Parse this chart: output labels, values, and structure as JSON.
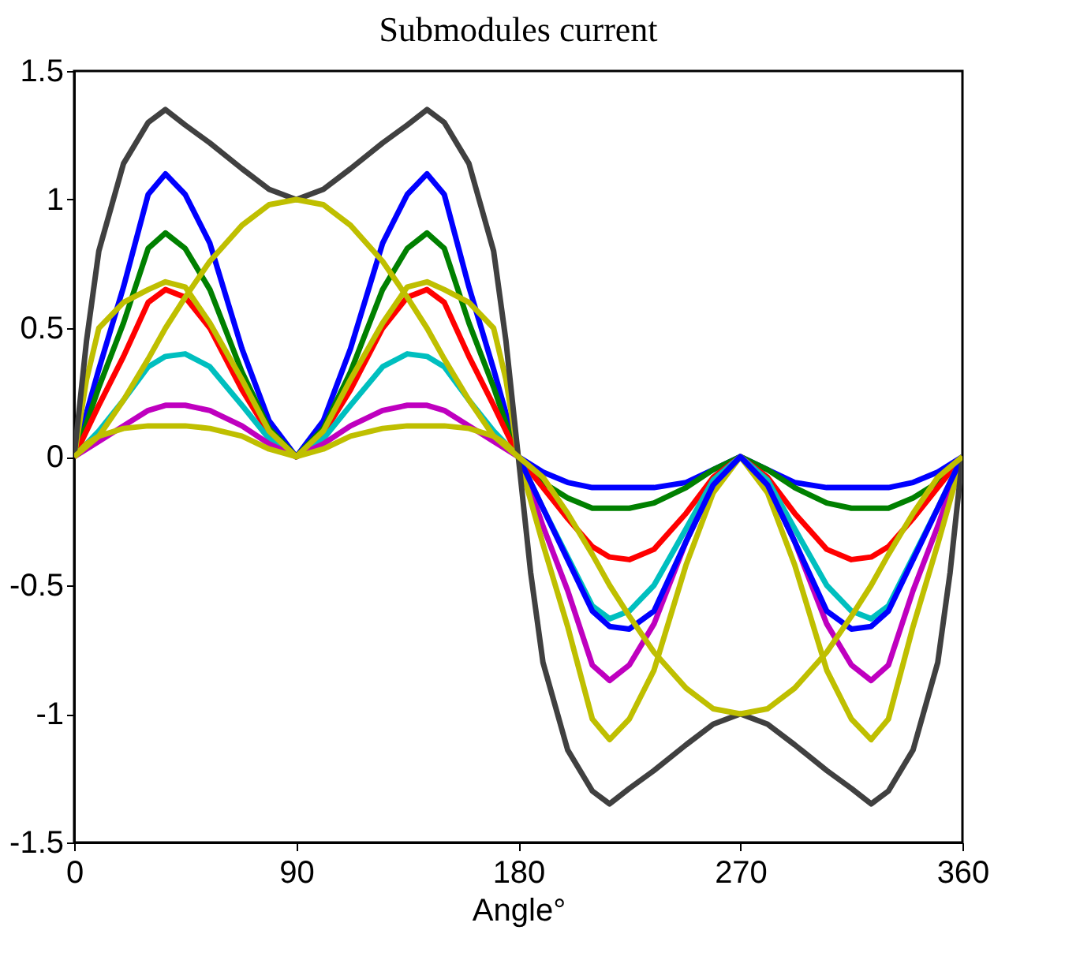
{
  "chart_data": {
    "type": "line",
    "title": "Submodules current",
    "xlabel": "Angle°",
    "x": [
      0,
      5,
      10,
      20,
      30,
      37,
      45,
      55,
      68,
      79,
      90,
      101,
      112,
      125,
      135,
      143,
      150,
      160,
      170,
      175,
      180,
      185,
      190,
      200,
      210,
      217,
      225,
      235,
      248,
      259,
      270,
      281,
      292,
      305,
      315,
      323,
      330,
      340,
      350,
      355,
      360
    ],
    "xlim": [
      0,
      360
    ],
    "xticks": [
      0,
      90,
      180,
      270,
      360
    ],
    "ylim": [
      -1.5,
      1.5
    ],
    "yticks": [
      -1.5,
      -1,
      -0.5,
      0,
      0.5,
      1,
      1.5
    ],
    "grid": false,
    "line_style": "solid",
    "marker": "none",
    "series": [
      {
        "color": "#0000ff",
        "values": [
          0,
          0.17,
          0.34,
          0.66,
          1.02,
          1.1,
          1.02,
          0.83,
          0.42,
          0.14,
          0,
          0.14,
          0.42,
          0.83,
          1.02,
          1.1,
          1.02,
          0.66,
          0.34,
          0.17,
          0,
          -0.03,
          -0.06,
          -0.1,
          -0.12,
          -0.12,
          -0.12,
          -0.12,
          -0.1,
          -0.05,
          0,
          -0.05,
          -0.1,
          -0.12,
          -0.12,
          -0.12,
          -0.12,
          -0.1,
          -0.06,
          -0.03,
          0
        ]
      },
      {
        "color": "#008000",
        "values": [
          0,
          0.13,
          0.27,
          0.52,
          0.81,
          0.87,
          0.81,
          0.65,
          0.33,
          0.11,
          0,
          0.11,
          0.33,
          0.65,
          0.81,
          0.87,
          0.81,
          0.52,
          0.27,
          0.13,
          0,
          -0.05,
          -0.1,
          -0.16,
          -0.2,
          -0.2,
          -0.2,
          -0.18,
          -0.12,
          -0.05,
          0,
          -0.05,
          -0.12,
          -0.18,
          -0.2,
          -0.2,
          -0.2,
          -0.16,
          -0.1,
          -0.05,
          0
        ]
      },
      {
        "color": "#ff0000",
        "values": [
          0,
          0.1,
          0.2,
          0.39,
          0.6,
          0.65,
          0.62,
          0.5,
          0.26,
          0.09,
          0,
          0.09,
          0.26,
          0.5,
          0.62,
          0.65,
          0.6,
          0.39,
          0.2,
          0.1,
          0,
          -0.06,
          -0.12,
          -0.24,
          -0.35,
          -0.39,
          -0.4,
          -0.36,
          -0.22,
          -0.08,
          0,
          -0.08,
          -0.22,
          -0.36,
          -0.4,
          -0.39,
          -0.35,
          -0.24,
          -0.12,
          -0.06,
          0
        ]
      },
      {
        "color": "#00bfbf",
        "values": [
          0,
          0.05,
          0.1,
          0.22,
          0.35,
          0.39,
          0.4,
          0.35,
          0.2,
          0.07,
          0,
          0.07,
          0.2,
          0.35,
          0.4,
          0.39,
          0.35,
          0.22,
          0.1,
          0.05,
          0,
          -0.1,
          -0.2,
          -0.39,
          -0.58,
          -0.63,
          -0.6,
          -0.5,
          -0.28,
          -0.09,
          0,
          -0.09,
          -0.28,
          -0.5,
          -0.6,
          -0.63,
          -0.58,
          -0.39,
          -0.2,
          -0.1,
          0
        ]
      },
      {
        "color": "#bf00bf",
        "values": [
          0,
          0.03,
          0.06,
          0.12,
          0.18,
          0.2,
          0.2,
          0.18,
          0.12,
          0.05,
          0,
          0.05,
          0.12,
          0.18,
          0.2,
          0.2,
          0.18,
          0.12,
          0.06,
          0.03,
          0,
          -0.13,
          -0.27,
          -0.52,
          -0.81,
          -0.87,
          -0.81,
          -0.65,
          -0.33,
          -0.11,
          0,
          -0.11,
          -0.33,
          -0.65,
          -0.81,
          -0.87,
          -0.81,
          -0.52,
          -0.27,
          -0.13,
          0
        ]
      },
      {
        "color": "#bfbf00",
        "values": [
          0,
          0.05,
          0.08,
          0.11,
          0.12,
          0.12,
          0.12,
          0.11,
          0.08,
          0.03,
          0,
          0.03,
          0.08,
          0.11,
          0.12,
          0.12,
          0.12,
          0.11,
          0.08,
          0.05,
          0,
          -0.17,
          -0.34,
          -0.66,
          -1.02,
          -1.1,
          -1.02,
          -0.83,
          -0.42,
          -0.14,
          0,
          -0.14,
          -0.42,
          -0.83,
          -1.02,
          -1.1,
          -1.02,
          -0.66,
          -0.34,
          -0.17,
          0
        ]
      },
      {
        "color": "#0000ff",
        "values": [
          null,
          null,
          null,
          null,
          null,
          null,
          null,
          null,
          null,
          null,
          null,
          null,
          null,
          null,
          null,
          null,
          null,
          null,
          null,
          null,
          0,
          -0.1,
          -0.2,
          -0.4,
          -0.6,
          -0.66,
          -0.67,
          -0.6,
          -0.33,
          -0.11,
          0,
          -0.11,
          -0.33,
          -0.6,
          -0.67,
          -0.66,
          -0.6,
          -0.4,
          -0.2,
          -0.1,
          0
        ]
      },
      {
        "color": "#bfbf00",
        "values": [
          0,
          0.3,
          0.5,
          0.6,
          0.65,
          0.68,
          0.66,
          0.52,
          0.3,
          0.1,
          0,
          0.1,
          0.3,
          0.52,
          0.66,
          0.68,
          0.65,
          0.6,
          0.5,
          0.3,
          0,
          null,
          null,
          null,
          null,
          null,
          null,
          null,
          null,
          null,
          null,
          null,
          null,
          null,
          null,
          null,
          null,
          null,
          null,
          null,
          null
        ]
      },
      {
        "color": "#404040",
        "values": [
          0,
          0.45,
          0.8,
          1.14,
          1.3,
          1.35,
          1.29,
          1.22,
          1.12,
          1.04,
          1.0,
          1.04,
          1.12,
          1.22,
          1.29,
          1.35,
          1.3,
          1.14,
          0.8,
          0.45,
          0,
          -0.45,
          -0.8,
          -1.14,
          -1.3,
          -1.35,
          -1.29,
          -1.22,
          -1.12,
          -1.04,
          -1.0,
          -1.04,
          -1.12,
          -1.22,
          -1.29,
          -1.35,
          -1.3,
          -1.14,
          -0.8,
          -0.45,
          0
        ]
      },
      {
        "color": "#bfbf00",
        "values": [
          0,
          0.04,
          0.08,
          0.22,
          0.38,
          0.5,
          0.62,
          0.76,
          0.9,
          0.98,
          1.0,
          0.98,
          0.9,
          0.76,
          0.62,
          0.5,
          0.38,
          0.22,
          0.08,
          0.04,
          0,
          -0.04,
          -0.08,
          -0.22,
          -0.38,
          -0.5,
          -0.62,
          -0.76,
          -0.9,
          -0.98,
          -1.0,
          -0.98,
          -0.9,
          -0.76,
          -0.62,
          -0.5,
          -0.38,
          -0.22,
          -0.08,
          -0.04,
          0
        ]
      }
    ]
  }
}
